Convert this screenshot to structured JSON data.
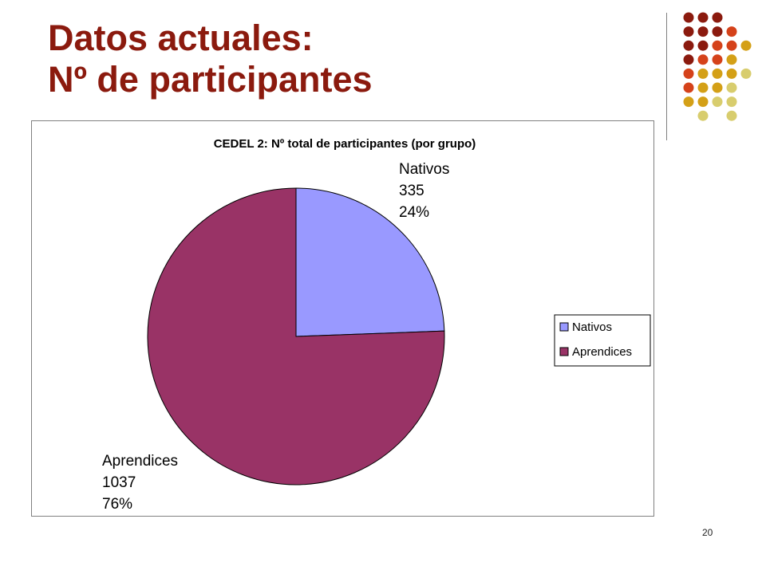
{
  "slide": {
    "title_line1": "Datos actuales:",
    "title_line2": "Nº de participantes",
    "page_number": "20",
    "title_color": "#8b1a0e"
  },
  "decoration": {
    "dot_colors": [
      "#8b1a0e",
      "#d5421a",
      "#d4a017",
      "#d8cd6e"
    ]
  },
  "chart_data": {
    "type": "pie",
    "title": "CEDEL 2: Nº total de participantes (por grupo)",
    "slices": [
      {
        "label": "Nativos",
        "value": 335,
        "percent_label": "24%",
        "color": "#9999ff"
      },
      {
        "label": "Aprendices",
        "value": 1037,
        "percent_label": "76%",
        "color": "#993366"
      }
    ],
    "legend_position": "right"
  }
}
